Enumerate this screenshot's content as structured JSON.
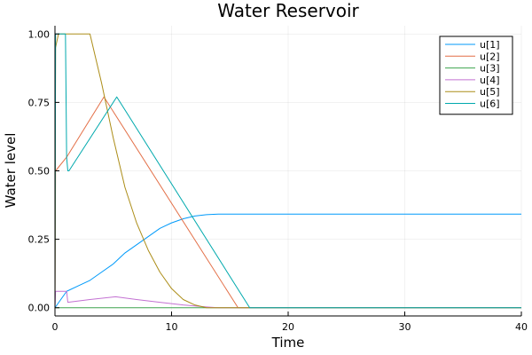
{
  "chart_data": {
    "type": "line",
    "title": "Water Reservoir",
    "xlabel": "Time",
    "ylabel": "Water level",
    "xlim": [
      0,
      40
    ],
    "ylim": [
      -0.03,
      1.03
    ],
    "x_ticks": [
      "0",
      "10",
      "20",
      "30",
      "40"
    ],
    "y_ticks": [
      "0.00",
      "0.25",
      "0.50",
      "0.75",
      "1.00"
    ],
    "grid": true,
    "legend_position": "top-right",
    "series": [
      {
        "name": "u[1]",
        "color": "#009AFA",
        "x": [
          0,
          1,
          2,
          3,
          4,
          5,
          6,
          7,
          8,
          9,
          10,
          11,
          12,
          13,
          14,
          16,
          20,
          30,
          40
        ],
        "y": [
          0.0,
          0.06,
          0.08,
          0.1,
          0.13,
          0.16,
          0.2,
          0.23,
          0.26,
          0.29,
          0.31,
          0.325,
          0.335,
          0.34,
          0.342,
          0.342,
          0.342,
          0.342,
          0.342
        ]
      },
      {
        "name": "u[2]",
        "color": "#E36F47",
        "x": [
          0,
          0.05,
          1,
          4.2,
          15.7,
          20,
          30,
          40
        ],
        "y": [
          0.0,
          0.5,
          0.55,
          0.77,
          0.0,
          0.0,
          0.0,
          0.0
        ]
      },
      {
        "name": "u[3]",
        "color": "#3EA44E",
        "x": [
          0,
          0.05,
          0.1,
          10,
          20,
          30,
          40
        ],
        "y": [
          0.0,
          0.0,
          0.0,
          0.0,
          0.0,
          0.0,
          0.0
        ]
      },
      {
        "name": "u[4]",
        "color": "#C371D2",
        "x": [
          0,
          0.05,
          1,
          1.1,
          3,
          5.2,
          7,
          9,
          11,
          13,
          14,
          20,
          40
        ],
        "y": [
          0.0,
          0.06,
          0.06,
          0.02,
          0.03,
          0.04,
          0.03,
          0.02,
          0.01,
          0.003,
          0.0,
          0.0,
          0.0
        ]
      },
      {
        "name": "u[5]",
        "color": "#AC8D18",
        "x": [
          0,
          0.05,
          0.3,
          3,
          4,
          5,
          6,
          7,
          8,
          9,
          10,
          11,
          12,
          13,
          20,
          40
        ],
        "y": [
          0.0,
          0.95,
          1.0,
          1.0,
          0.82,
          0.62,
          0.44,
          0.31,
          0.21,
          0.13,
          0.07,
          0.03,
          0.01,
          0.0,
          0.0,
          0.0
        ]
      },
      {
        "name": "u[6]",
        "color": "#00A9AD",
        "x": [
          0,
          0.05,
          0.4,
          0.9,
          1.0,
          1.1,
          1.2,
          5.3,
          16.7,
          20,
          30,
          40
        ],
        "y": [
          0.0,
          1.0,
          1.0,
          1.0,
          0.55,
          0.5,
          0.5,
          0.77,
          0.0,
          0.0,
          0.0,
          0.0
        ]
      }
    ]
  }
}
